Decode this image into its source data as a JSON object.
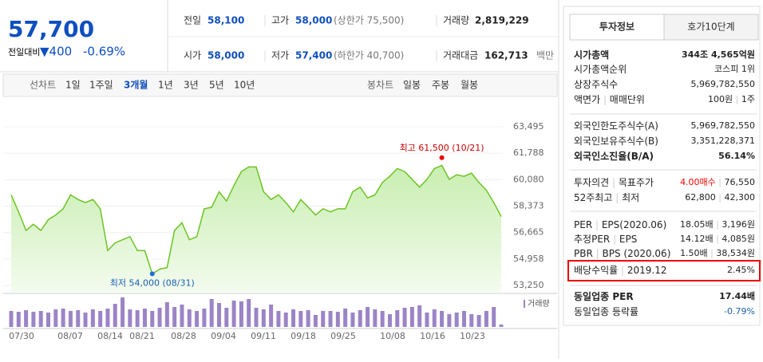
{
  "quote": {
    "price": "57,700",
    "change_label": "전일대비",
    "change": "▼400",
    "change_rate": "-0.69%"
  },
  "summary": [
    [
      {
        "label": "전일",
        "value": "58,100"
      },
      {
        "label": "고가",
        "value": "58,000",
        "note": "(상한가 75,500)"
      },
      {
        "label": "거래량",
        "value": "2,819,229"
      }
    ],
    [
      {
        "label": "시가",
        "value": "58,000"
      },
      {
        "label": "저가",
        "value": "57,400",
        "note": "(하한가 40,700)"
      },
      {
        "label": "거래대금",
        "value": "162,713",
        "note": "백만"
      }
    ]
  ],
  "tabs": {
    "line_label": "선차트",
    "line": [
      "1일",
      "1주일",
      "3개월",
      "1년",
      "3년",
      "5년",
      "10년"
    ],
    "candle_label": "봉차트",
    "candle": [
      "일봉",
      "주봉",
      "월봉"
    ]
  },
  "chart": {
    "type": "line",
    "color": "#6cc424",
    "values": [
      59100,
      58000,
      56800,
      57200,
      56800,
      57500,
      57800,
      58200,
      59100,
      58800,
      58600,
      58800,
      58200,
      55500,
      56000,
      56200,
      56400,
      55500,
      55500,
      54000,
      54300,
      54400,
      56800,
      57300,
      56200,
      56400,
      58200,
      58300,
      59300,
      58700,
      59700,
      60600,
      60900,
      60900,
      59300,
      58800,
      59100,
      58600,
      58000,
      58800,
      58300,
      57800,
      58200,
      58000,
      58200,
      58200,
      59300,
      59600,
      58900,
      59100,
      59900,
      60300,
      60800,
      60600,
      60100,
      59600,
      60100,
      60800,
      61000,
      60100,
      60400,
      60300,
      60500,
      59900,
      59400,
      58600,
      57700
    ],
    "volumes": [
      20,
      19,
      21,
      19,
      20,
      18,
      22,
      23,
      20,
      21,
      18,
      22,
      20,
      23,
      29,
      37,
      22,
      21,
      23,
      20,
      24,
      31,
      25,
      28,
      22,
      20,
      23,
      35,
      30,
      24,
      33,
      32,
      35,
      24,
      22,
      28,
      20,
      18,
      22,
      20,
      21,
      15,
      20,
      20,
      19,
      23,
      18,
      21,
      25,
      22,
      20,
      16,
      21,
      24,
      25,
      27,
      18,
      22,
      20,
      16,
      18,
      20,
      16,
      15,
      20,
      25,
      3
    ],
    "volume_label": "거래량",
    "vlim": [
      0,
      40
    ],
    "ylim": [
      53250,
      63495
    ],
    "yticks": [
      {
        "value": 63495,
        "label": "63,495"
      },
      {
        "value": 61788,
        "label": "61,788"
      },
      {
        "value": 60080,
        "label": "60,080"
      },
      {
        "value": 58373,
        "label": "58,373"
      },
      {
        "value": 56665,
        "label": "56,665"
      },
      {
        "value": 54958,
        "label": "54,958"
      },
      {
        "value": 53250,
        "label": "53,250"
      }
    ],
    "xlabels": [
      "07/30",
      "08/07",
      "08/14",
      "08/21",
      "08/28",
      "09/04",
      "09/11",
      "09/18",
      "09/25",
      "10/08",
      "10/16",
      "10/23"
    ],
    "high": {
      "value": 61500,
      "label": "최고 61,500 (10/21)"
    },
    "low": {
      "value": 54000,
      "label": "최저 54,000 (08/31)"
    }
  },
  "info": {
    "tabs": [
      "투자정보",
      "호가10단계"
    ],
    "groups": [
      [
        {
          "label": "시가총액",
          "value": "344조 4,565억원",
          "bold": true
        },
        {
          "label": "시가총액순위",
          "value": "코스피 1위"
        },
        {
          "label": "상장주식수",
          "value": "5,969,782,550"
        },
        {
          "label": "액면가",
          "label2": "매매단위",
          "value": "100원",
          "value2": "1주"
        }
      ],
      [
        {
          "label": "외국인한도주식수(A)",
          "value": "5,969,782,550"
        },
        {
          "label": "외국인보유주식수(B)",
          "value": "3,351,228,371"
        },
        {
          "label": "외국인소진율(B/A)",
          "value": "56.14%",
          "bold": true
        }
      ],
      [
        {
          "label": "투자의견",
          "label2": "목표주가",
          "value": "4.00매수",
          "value2": "76,550",
          "red": true
        },
        {
          "label": "52주최고",
          "label2": "최저",
          "value": "62,800",
          "value2": "42,300"
        }
      ],
      [
        {
          "label": "PER",
          "label2": "EPS(2020.06)",
          "value": "18.05배",
          "value2": "3,196원"
        },
        {
          "label": "추정PER",
          "label2": "EPS",
          "value": "14.12배",
          "value2": "4,085원"
        },
        {
          "label": "PBR",
          "label2": "BPS (2020.06)",
          "value": "1.50배",
          "value2": "38,534원"
        },
        {
          "label": "배당수익률",
          "label2": "2019.12",
          "value": "2.45%",
          "box": true
        }
      ],
      [
        {
          "label": "동일업종 PER",
          "value": "17.44배",
          "bold": true
        },
        {
          "label": "동일업종 등락률",
          "value": "-0.79%",
          "blue": true
        }
      ]
    ]
  }
}
